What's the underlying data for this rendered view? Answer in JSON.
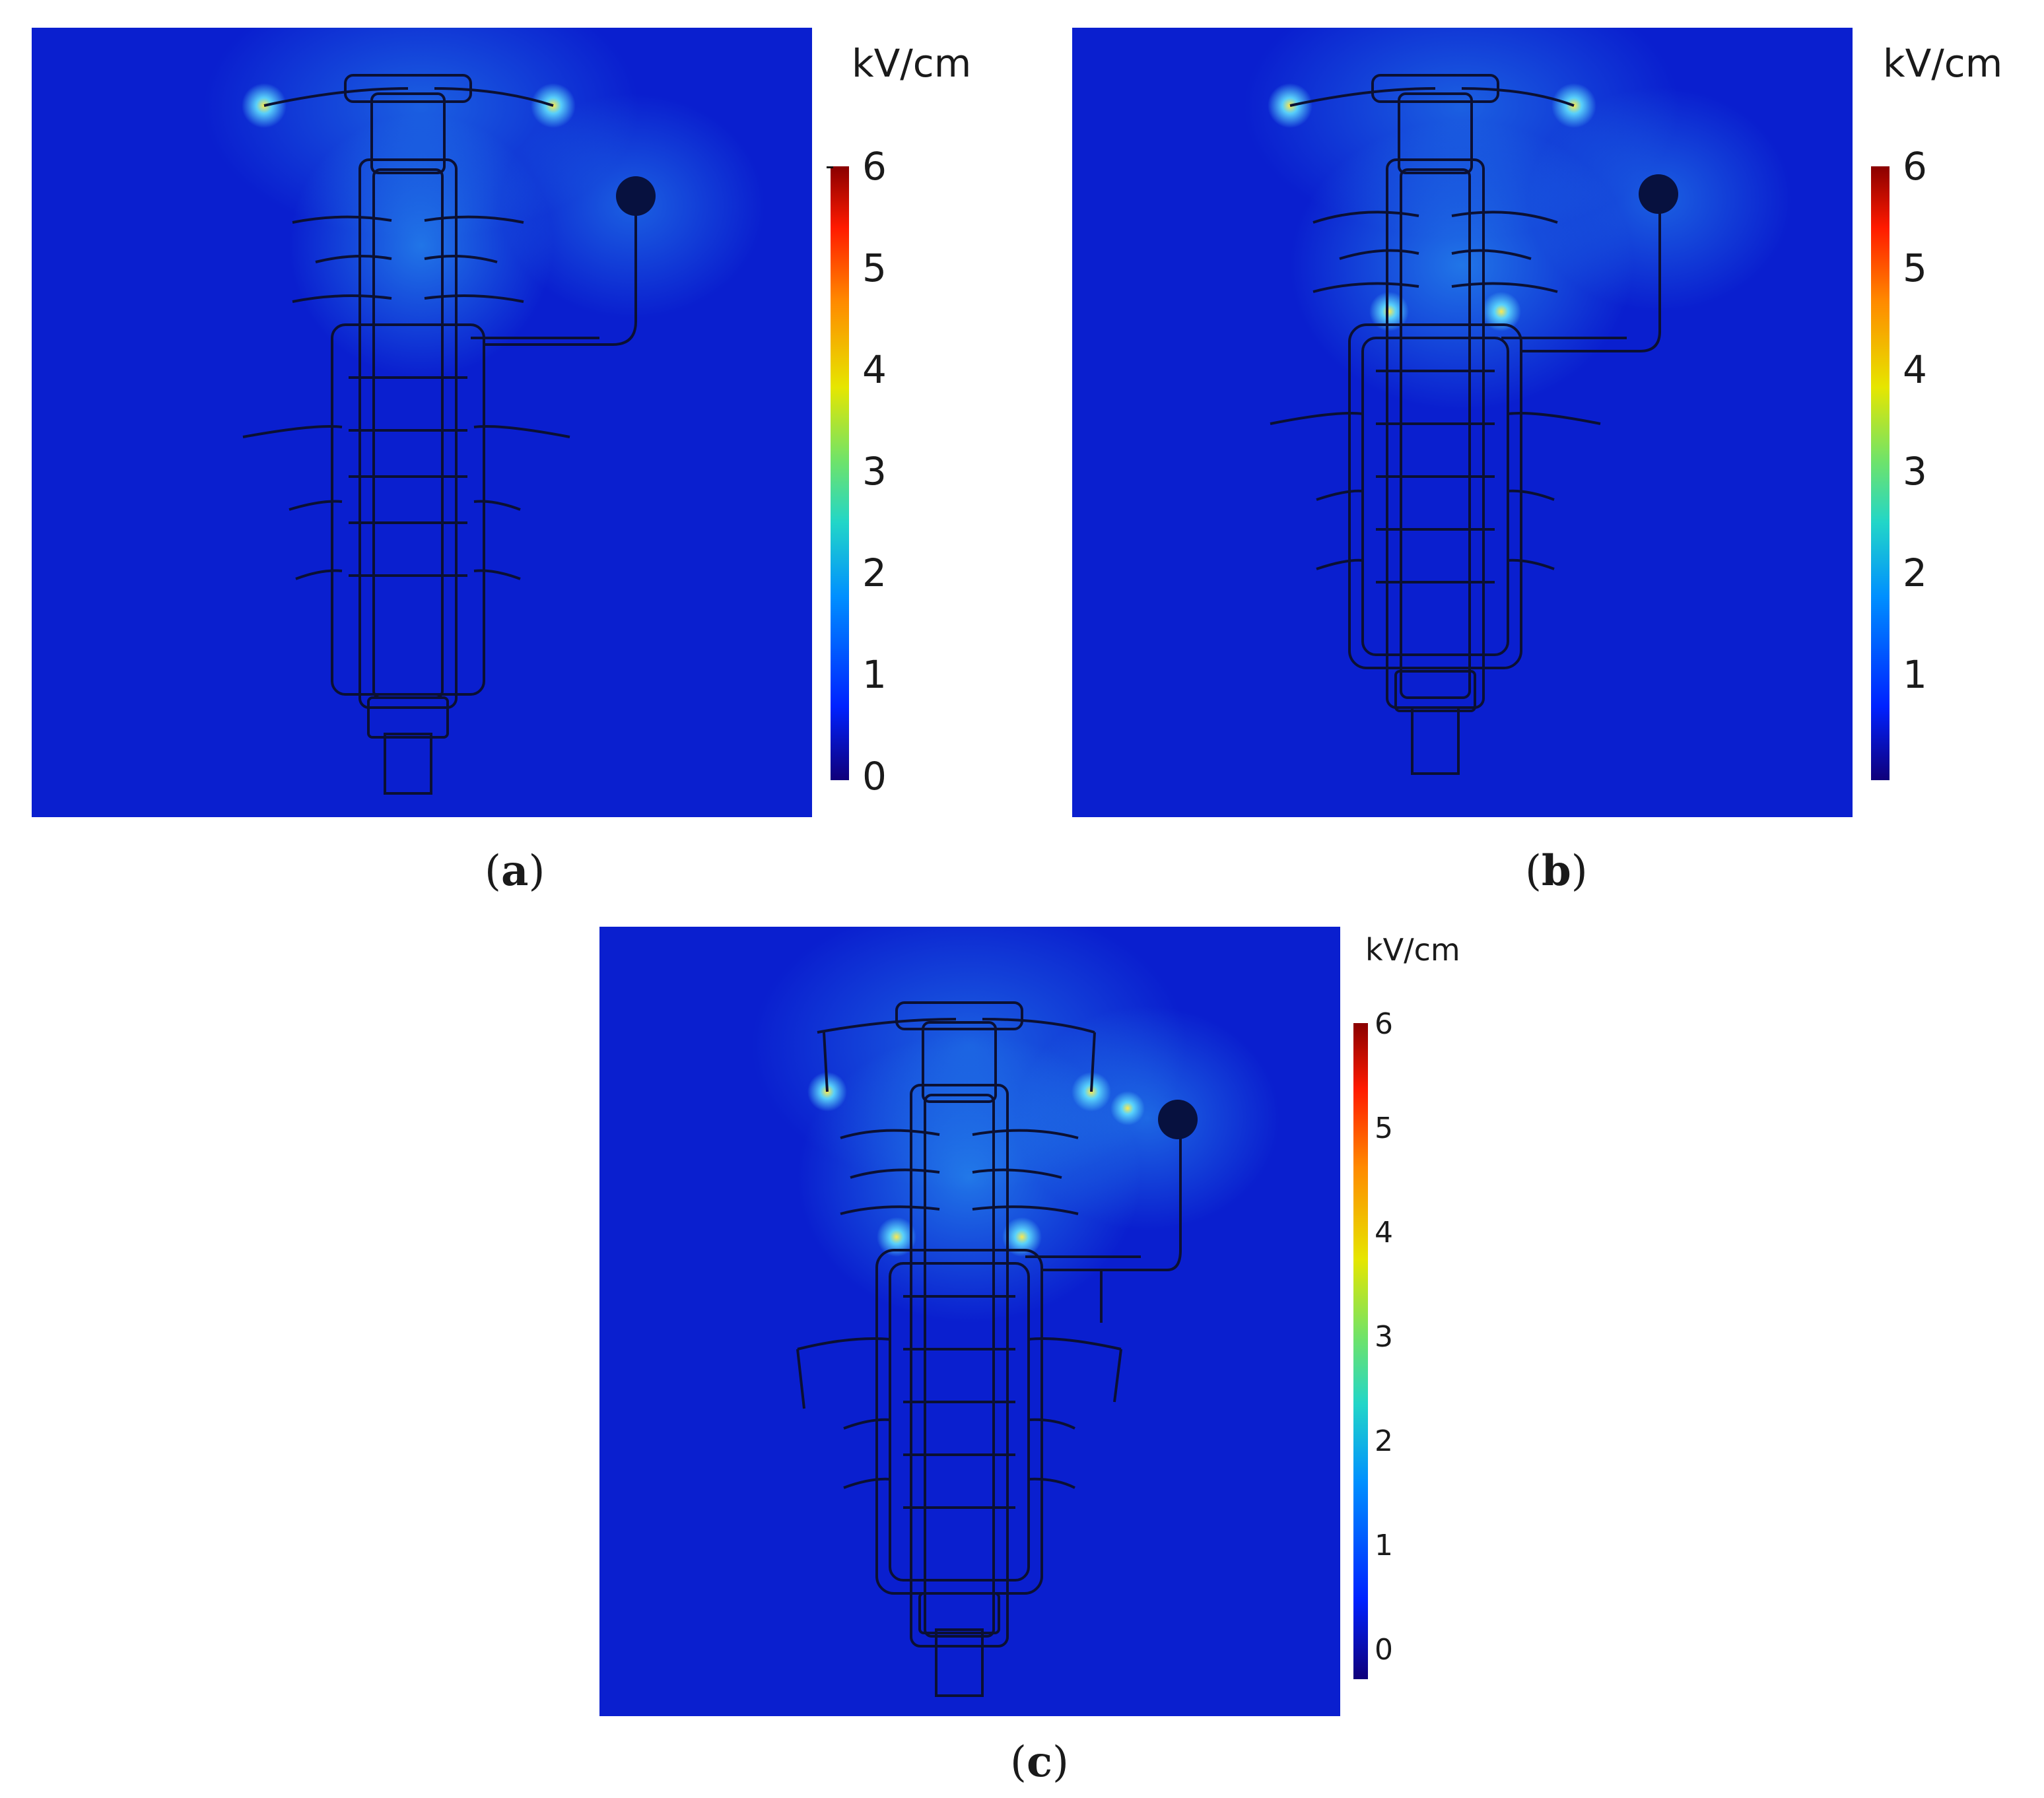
{
  "panels": [
    {
      "id": "a",
      "caption_open": "(",
      "caption_letter": "a",
      "caption_close": ")",
      "colorbar": {
        "unit": "kV/cm",
        "ticks": [
          "6",
          "5",
          "4",
          "3",
          "2",
          "1",
          "0"
        ]
      }
    },
    {
      "id": "b",
      "caption_open": "(",
      "caption_letter": "b",
      "caption_close": ")",
      "colorbar": {
        "unit": "kV/cm",
        "ticks": [
          "6",
          "5",
          "4",
          "3",
          "2",
          "1"
        ]
      }
    },
    {
      "id": "c",
      "caption_open": "(",
      "caption_letter": "c",
      "caption_close": ")",
      "colorbar": {
        "unit": "kV/cm",
        "ticks": [
          "6",
          "5",
          "4",
          "3",
          "2",
          "1",
          "0"
        ]
      }
    }
  ],
  "colormap": [
    "#10007a",
    "#0022ff",
    "#0090ff",
    "#22d6c8",
    "#6fe36a",
    "#e6e600",
    "#ff8a00",
    "#ff1a00",
    "#8a0000"
  ]
}
